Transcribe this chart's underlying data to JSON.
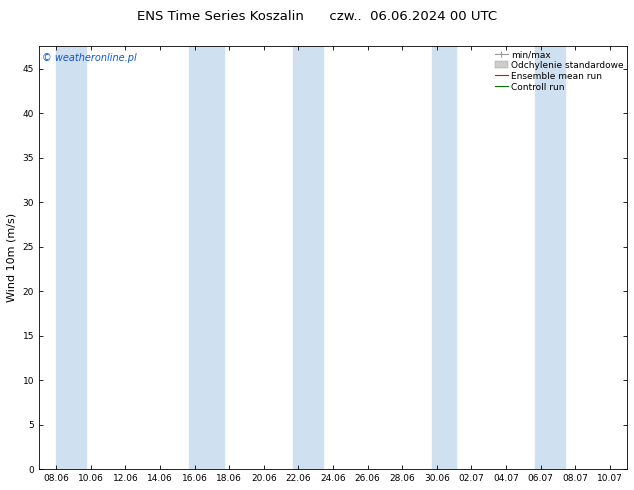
{
  "title": "ENS Time Series Koszalin      czw..  06.06.2024 00 UTC",
  "ylabel": "Wind 10m (m/s)",
  "watermark": "© weatheronline.pl",
  "ylim": [
    0,
    47.5
  ],
  "yticks": [
    0,
    5,
    10,
    15,
    20,
    25,
    30,
    35,
    40,
    45
  ],
  "xtick_labels": [
    "08.06",
    "10.06",
    "12.06",
    "14.06",
    "16.06",
    "18.06",
    "20.06",
    "22.06",
    "24.06",
    "26.06",
    "28.06",
    "30.06",
    "02.07",
    "04.07",
    "06.07",
    "08.07",
    "10.07"
  ],
  "n_xticks": 17,
  "background_color": "#ffffff",
  "band_color": "#cfe0f0",
  "band_positions_x": [
    0,
    1,
    4,
    7,
    11,
    14
  ],
  "band_widths": [
    1.0,
    0.5,
    0.6,
    0.6,
    0.5,
    0.7
  ],
  "legend_labels": [
    "min/max",
    "Odchylenie standardowe",
    "Ensemble mean run",
    "Controll run"
  ],
  "legend_colors": [
    "#999999",
    "#cccccc",
    "#ff0000",
    "#007700"
  ],
  "title_fontsize": 9.5,
  "tick_fontsize": 6.5,
  "ylabel_fontsize": 8,
  "watermark_fontsize": 7,
  "legend_fontsize": 6.5
}
